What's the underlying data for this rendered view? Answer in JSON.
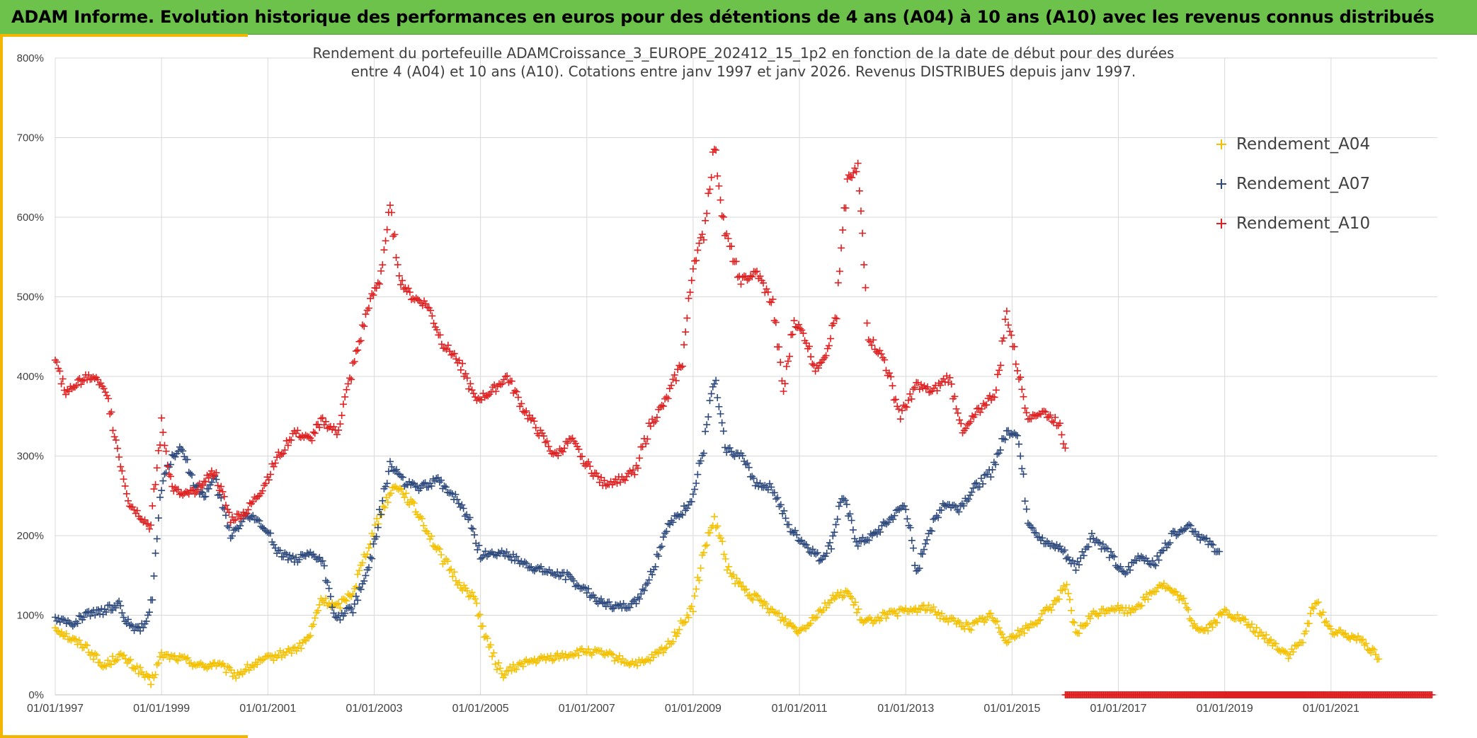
{
  "header": {
    "title": "ADAM Informe. Evolution historique des performances en euros pour des détentions de 4 ans (A04) à 10 ans (A10) avec les revenus connus distribués"
  },
  "colors": {
    "banner": "#6cc24a",
    "accent": "#f2b600",
    "A04": "#f5c000",
    "A07": "#2e4a7d",
    "A10": "#e02020"
  },
  "chart_data": {
    "type": "scatter",
    "title": "Rendement du portefeuille ADAMCroissance_3_EUROPE_202412_15_1p2  en fonction de la date de début pour des durées entre 4 (A04) et 10 ans (A10). Cotations entre janv 1997 et janv 2026. Revenus DISTRIBUES depuis janv 1997.",
    "title_lines": [
      "Rendement du portefeuille ADAMCroissance_3_EUROPE_202412_15_1p2  en fonction de la date de début pour des durées",
      "entre 4 (A04) et 10 ans (A10). Cotations entre janv 1997 et janv 2026. Revenus DISTRIBUES depuis janv 1997."
    ],
    "x_unit": "date",
    "xlim": [
      "01/01/1997",
      "01/01/2023"
    ],
    "ylim": [
      0,
      800
    ],
    "y_ticks": [
      "0%",
      "100%",
      "200%",
      "300%",
      "400%",
      "500%",
      "600%",
      "700%",
      "800%"
    ],
    "x_ticks": [
      "01/01/1997",
      "01/01/1999",
      "01/01/2001",
      "01/01/2003",
      "01/01/2005",
      "01/01/2007",
      "01/01/2009",
      "01/01/2011",
      "01/01/2013",
      "01/01/2015",
      "01/01/2017",
      "01/01/2019",
      "01/01/2021"
    ],
    "grid": true,
    "legend_position": "top-right",
    "series": [
      {
        "name": "Rendement_A04",
        "color": "#f5c000",
        "x": [
          1997.0,
          1997.3,
          1997.6,
          1997.9,
          1998.2,
          1998.6,
          1998.8,
          1999.0,
          1999.4,
          1999.8,
          2000.0,
          2000.4,
          2000.8,
          2001.2,
          2001.6,
          2001.8,
          2002.0,
          2002.3,
          2002.6,
          2002.9,
          2003.2,
          2003.4,
          2003.6,
          2003.9,
          2004.2,
          2004.6,
          2004.9,
          2005.1,
          2005.4,
          2005.8,
          2006.2,
          2006.6,
          2007.0,
          2007.4,
          2007.8,
          2008.1,
          2008.5,
          2008.8,
          2009.0,
          2009.2,
          2009.4,
          2009.7,
          2010.0,
          2010.4,
          2010.8,
          2011.0,
          2011.3,
          2011.6,
          2011.9,
          2012.2,
          2012.6,
          2013.0,
          2013.4,
          2013.8,
          2014.2,
          2014.6,
          2014.9,
          2015.2,
          2015.5,
          2015.8,
          2016.0,
          2016.2,
          2016.5,
          2016.9,
          2017.2,
          2017.5,
          2017.8,
          2018.0,
          2018.2,
          2018.4,
          2018.6,
          2018.8,
          2019.0,
          2019.3,
          2019.6,
          2019.9,
          2020.2,
          2020.5,
          2020.7,
          2021.0,
          2021.3,
          2021.6,
          2021.9
        ],
        "y": [
          85,
          70,
          60,
          35,
          50,
          30,
          15,
          50,
          45,
          35,
          40,
          25,
          40,
          50,
          60,
          75,
          120,
          110,
          130,
          190,
          240,
          265,
          250,
          220,
          180,
          140,
          120,
          70,
          25,
          40,
          45,
          50,
          55,
          50,
          40,
          40,
          60,
          90,
          110,
          180,
          220,
          150,
          130,
          110,
          90,
          80,
          100,
          120,
          130,
          90,
          100,
          105,
          110,
          95,
          85,
          100,
          70,
          80,
          95,
          115,
          140,
          75,
          100,
          110,
          105,
          120,
          140,
          130,
          120,
          90,
          80,
          90,
          105,
          95,
          80,
          65,
          50,
          70,
          120,
          80,
          75,
          70,
          45
        ]
      },
      {
        "name": "Rendement_A07",
        "color": "#2e4a7d",
        "x": [
          1997.0,
          1997.3,
          1997.6,
          1997.9,
          1998.2,
          1998.4,
          1998.6,
          1998.8,
          1999.0,
          1999.2,
          1999.4,
          1999.6,
          1999.8,
          2000.0,
          2000.3,
          2000.6,
          2000.9,
          2001.2,
          2001.5,
          2001.8,
          2002.0,
          2002.3,
          2002.6,
          2002.9,
          2003.1,
          2003.3,
          2003.6,
          2003.9,
          2004.2,
          2004.5,
          2004.8,
          2005.0,
          2005.4,
          2005.8,
          2006.2,
          2006.6,
          2007.0,
          2007.3,
          2007.6,
          2007.9,
          2008.2,
          2008.5,
          2008.8,
          2009.0,
          2009.2,
          2009.4,
          2009.6,
          2009.9,
          2010.2,
          2010.5,
          2010.8,
          2011.1,
          2011.4,
          2011.6,
          2011.8,
          2012.1,
          2012.4,
          2012.7,
          2013.0,
          2013.2,
          2013.4,
          2013.7,
          2014.0,
          2014.3,
          2014.6,
          2014.9,
          2015.1,
          2015.3,
          2015.6,
          2015.9,
          2016.2,
          2016.5,
          2016.8,
          2017.1,
          2017.4,
          2017.7,
          2018.0,
          2018.3,
          2018.6,
          2018.9
        ],
        "y": [
          95,
          90,
          100,
          105,
          115,
          85,
          80,
          110,
          260,
          300,
          310,
          265,
          250,
          270,
          200,
          225,
          215,
          180,
          170,
          175,
          170,
          95,
          110,
          160,
          225,
          290,
          265,
          260,
          270,
          250,
          220,
          175,
          180,
          165,
          155,
          150,
          130,
          115,
          110,
          115,
          150,
          210,
          230,
          250,
          310,
          400,
          310,
          300,
          265,
          260,
          210,
          190,
          170,
          190,
          250,
          190,
          200,
          220,
          240,
          150,
          200,
          240,
          235,
          260,
          280,
          330,
          330,
          220,
          190,
          185,
          160,
          200,
          180,
          150,
          175,
          165,
          200,
          215,
          195,
          180
        ]
      },
      {
        "name": "Rendement_A10",
        "color": "#e02020",
        "x": [
          1997.0,
          1997.2,
          1997.4,
          1997.6,
          1997.8,
          1998.0,
          1998.2,
          1998.4,
          1998.6,
          1998.8,
          1999.0,
          1999.2,
          1999.4,
          1999.6,
          1999.8,
          2000.0,
          2000.3,
          2000.6,
          2000.9,
          2001.2,
          2001.5,
          2001.8,
          2002.0,
          2002.3,
          2002.6,
          2002.9,
          2003.1,
          2003.3,
          2003.5,
          2003.7,
          2004.0,
          2004.3,
          2004.6,
          2004.9,
          2005.2,
          2005.5,
          2005.8,
          2006.1,
          2006.4,
          2006.7,
          2007.0,
          2007.3,
          2007.6,
          2007.9,
          2008.2,
          2008.5,
          2008.8,
          2009.0,
          2009.2,
          2009.4,
          2009.6,
          2009.9,
          2010.2,
          2010.5,
          2010.7,
          2010.9,
          2011.1,
          2011.3,
          2011.5,
          2011.7,
          2011.9,
          2012.1,
          2012.3,
          2012.6,
          2012.9,
          2013.2,
          2013.5,
          2013.8,
          2014.1,
          2014.4,
          2014.7,
          2014.9,
          2015.1,
          2015.3,
          2015.6,
          2015.9,
          2016.0
        ],
        "y": [
          420,
          380,
          390,
          400,
          395,
          370,
          300,
          240,
          225,
          210,
          340,
          260,
          250,
          255,
          270,
          280,
          220,
          230,
          260,
          300,
          330,
          320,
          345,
          330,
          410,
          490,
          520,
          610,
          520,
          500,
          490,
          440,
          420,
          370,
          380,
          400,
          360,
          330,
          300,
          320,
          290,
          265,
          270,
          280,
          340,
          370,
          420,
          540,
          580,
          690,
          580,
          520,
          530,
          490,
          380,
          470,
          450,
          410,
          430,
          480,
          650,
          660,
          450,
          420,
          350,
          390,
          380,
          400,
          330,
          360,
          380,
          480,
          410,
          350,
          355,
          340,
          310
        ]
      },
      {
        "name": "",
        "color": "#e02020",
        "role": "baseline",
        "x": [
          2016.0,
          2022.9
        ],
        "y": [
          0,
          0
        ]
      }
    ]
  }
}
